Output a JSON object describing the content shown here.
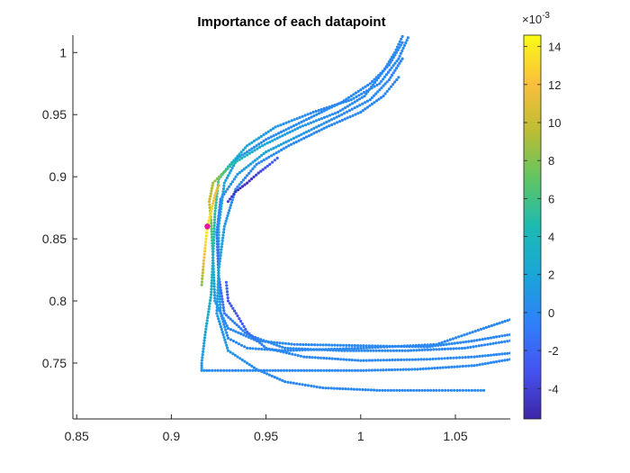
{
  "chart_data": {
    "type": "scatter",
    "title": "Importance of each datapoint",
    "xlabel": "",
    "ylabel": "",
    "xlim": [
      0.848,
      1.079
    ],
    "ylim": [
      0.705,
      1.014
    ],
    "x_ticks": [
      0.85,
      0.9,
      0.95,
      1,
      1.05
    ],
    "x_tick_labels": [
      "0.85",
      "0.9",
      "0.95",
      "1",
      "1.05"
    ],
    "y_ticks": [
      0.75,
      0.8,
      0.85,
      0.9,
      0.95,
      1
    ],
    "y_tick_labels": [
      "0.75",
      "0.8",
      "0.85",
      "0.9",
      "0.95",
      "1"
    ],
    "grid": false,
    "colorbar": {
      "colormap": "parula",
      "range": [
        -5.6,
        14.6
      ],
      "ticks": [
        -4,
        -2,
        0,
        2,
        4,
        6,
        8,
        10,
        12,
        14
      ],
      "tick_labels": [
        "-4",
        "-2",
        "0",
        "2",
        "4",
        "6",
        "8",
        "10",
        "12",
        "14"
      ],
      "scale_label": "×10",
      "scale_exponent": "-3"
    },
    "highlight_point": {
      "x": 0.919,
      "y": 0.86,
      "color": "#e6199e"
    },
    "trajectories": [
      {
        "values": [
          [
            1.079,
            0.753
          ],
          [
            1.06,
            0.748
          ],
          [
            1.03,
            0.745
          ],
          [
            1.0,
            0.744
          ],
          [
            0.97,
            0.744
          ],
          [
            0.94,
            0.744
          ],
          [
            0.92,
            0.744
          ],
          [
            0.916,
            0.744
          ],
          [
            0.916,
            0.75
          ],
          [
            0.918,
            0.775
          ],
          [
            0.921,
            0.805
          ],
          [
            0.922,
            0.835
          ],
          [
            0.923,
            0.87
          ],
          [
            0.925,
            0.898
          ],
          [
            0.93,
            0.908
          ],
          [
            0.94,
            0.925
          ],
          [
            0.955,
            0.94
          ],
          [
            0.975,
            0.952
          ],
          [
            0.995,
            0.962
          ],
          [
            1.01,
            0.975
          ],
          [
            1.02,
            0.995
          ],
          [
            1.025,
            1.012
          ]
        ],
        "importance": [
          0,
          0,
          0,
          0,
          0,
          0,
          0,
          1,
          1,
          2,
          3,
          4,
          5,
          6,
          4,
          2,
          1,
          0,
          0,
          0,
          0,
          0
        ]
      },
      {
        "values": [
          [
            1.079,
            0.785
          ],
          [
            1.065,
            0.778
          ],
          [
            1.04,
            0.765
          ],
          [
            1.0,
            0.762
          ],
          [
            0.96,
            0.76
          ],
          [
            0.94,
            0.762
          ],
          [
            0.93,
            0.77
          ],
          [
            0.926,
            0.79
          ],
          [
            0.925,
            0.82
          ],
          [
            0.925,
            0.86
          ],
          [
            0.928,
            0.895
          ],
          [
            0.935,
            0.915
          ],
          [
            0.95,
            0.93
          ],
          [
            0.97,
            0.945
          ],
          [
            0.99,
            0.96
          ],
          [
            1.005,
            0.975
          ],
          [
            1.015,
            0.99
          ],
          [
            1.022,
            1.008
          ]
        ],
        "importance": [
          0,
          0,
          0,
          0,
          0,
          0,
          0,
          1,
          2,
          3,
          2,
          1,
          0,
          0,
          0,
          0,
          0,
          0
        ]
      },
      {
        "values": [
          [
            1.079,
            0.773
          ],
          [
            1.06,
            0.768
          ],
          [
            1.035,
            0.763
          ],
          [
            1.0,
            0.764
          ],
          [
            0.965,
            0.765
          ],
          [
            0.945,
            0.768
          ],
          [
            0.93,
            0.778
          ],
          [
            0.923,
            0.8
          ],
          [
            0.922,
            0.835
          ],
          [
            0.921,
            0.865
          ],
          [
            0.92,
            0.88
          ],
          [
            0.922,
            0.895
          ],
          [
            0.932,
            0.91
          ],
          [
            0.948,
            0.925
          ],
          [
            0.968,
            0.94
          ],
          [
            0.988,
            0.952
          ],
          [
            1.002,
            0.965
          ],
          [
            1.012,
            0.985
          ],
          [
            1.018,
            1.0
          ],
          [
            1.022,
            1.013
          ]
        ],
        "importance": [
          0,
          0,
          0,
          0,
          0,
          0,
          0,
          1,
          3,
          8,
          10,
          9,
          5,
          2,
          1,
          0,
          0,
          0,
          0,
          0
        ]
      },
      {
        "values": [
          [
            1.079,
            0.768
          ],
          [
            1.055,
            0.762
          ],
          [
            1.025,
            0.76
          ],
          [
            0.99,
            0.76
          ],
          [
            0.96,
            0.762
          ],
          [
            0.94,
            0.773
          ],
          [
            0.928,
            0.79
          ],
          [
            0.925,
            0.82
          ],
          [
            0.924,
            0.855
          ],
          [
            0.926,
            0.882
          ],
          [
            0.935,
            0.902
          ],
          [
            0.95,
            0.92
          ],
          [
            0.97,
            0.935
          ],
          [
            0.99,
            0.95
          ],
          [
            1.005,
            0.962
          ],
          [
            1.015,
            0.978
          ],
          [
            1.022,
            0.995
          ]
        ],
        "importance": [
          0,
          0,
          0,
          0,
          0,
          0,
          -1,
          -2,
          -1,
          0,
          1,
          2,
          1,
          0,
          0,
          0,
          0
        ]
      },
      {
        "values": [
          [
            1.065,
            0.728
          ],
          [
            1.04,
            0.728
          ],
          [
            1.01,
            0.728
          ],
          [
            0.98,
            0.73
          ],
          [
            0.96,
            0.735
          ],
          [
            0.945,
            0.745
          ],
          [
            0.93,
            0.76
          ],
          [
            0.924,
            0.79
          ],
          [
            0.925,
            0.825
          ],
          [
            0.928,
            0.86
          ],
          [
            0.934,
            0.89
          ],
          [
            0.945,
            0.91
          ],
          [
            0.962,
            0.925
          ],
          [
            0.982,
            0.94
          ],
          [
            1.0,
            0.952
          ],
          [
            1.012,
            0.965
          ],
          [
            1.02,
            0.98
          ]
        ],
        "importance": [
          0,
          0,
          0,
          0,
          0,
          0,
          1,
          1,
          2,
          1,
          0,
          0,
          0,
          0,
          0,
          0,
          0
        ]
      },
      {
        "values": [
          [
            1.079,
            0.758
          ],
          [
            1.06,
            0.755
          ],
          [
            1.035,
            0.753
          ],
          [
            1.0,
            0.752
          ],
          [
            0.97,
            0.755
          ],
          [
            0.95,
            0.762
          ],
          [
            0.94,
            0.775
          ],
          [
            0.935,
            0.788
          ],
          [
            0.93,
            0.8
          ],
          [
            0.929,
            0.815
          ]
        ],
        "importance": [
          0,
          0,
          0,
          0,
          0,
          0,
          -2,
          -3,
          -3,
          -2
        ]
      },
      {
        "values": [
          [
            0.916,
            0.813
          ],
          [
            0.917,
            0.83
          ],
          [
            0.918,
            0.845
          ],
          [
            0.919,
            0.86
          ],
          [
            0.921,
            0.872
          ],
          [
            0.923,
            0.885
          ],
          [
            0.925,
            0.893
          ]
        ],
        "importance": [
          8,
          11,
          13,
          14,
          13,
          12,
          10
        ]
      },
      {
        "values": [
          [
            0.93,
            0.88
          ],
          [
            0.934,
            0.888
          ],
          [
            0.94,
            0.895
          ],
          [
            0.946,
            0.903
          ],
          [
            0.952,
            0.91
          ],
          [
            0.956,
            0.915
          ]
        ],
        "importance": [
          -4,
          -5,
          -5,
          -4,
          -3,
          -2
        ]
      }
    ]
  }
}
